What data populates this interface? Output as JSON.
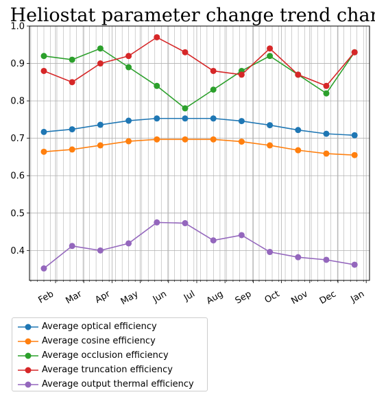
{
  "chart_data": {
    "type": "line",
    "title": "Heliostat parameter change trend chart",
    "xlabel": "",
    "ylabel": "",
    "categories": [
      "Feb",
      "Mar",
      "Apr",
      "May",
      "Jun",
      "Jul",
      "Aug",
      "Sep",
      "Oct",
      "Nov",
      "Dec",
      "Jan"
    ],
    "ylim": [
      0.32,
      1.0
    ],
    "yticks": [
      "0.4",
      "0.5",
      "0.6",
      "0.7",
      "0.8",
      "0.9",
      "1.0"
    ],
    "grid": true,
    "legend_position": "below",
    "series": [
      {
        "name": "Average optical efficiency",
        "color": "#1f77b4",
        "values": [
          0.717,
          0.724,
          0.736,
          0.747,
          0.753,
          0.753,
          0.753,
          0.746,
          0.735,
          0.722,
          0.712,
          0.708
        ]
      },
      {
        "name": "Average cosine efficiency",
        "color": "#ff7f0e",
        "values": [
          0.664,
          0.67,
          0.681,
          0.692,
          0.697,
          0.697,
          0.697,
          0.691,
          0.681,
          0.668,
          0.659,
          0.655
        ]
      },
      {
        "name": "Average occlusion efficiency",
        "color": "#2ca02c",
        "values": [
          0.92,
          0.91,
          0.94,
          0.89,
          0.84,
          0.78,
          0.83,
          0.88,
          0.92,
          0.87,
          0.82,
          0.93
        ]
      },
      {
        "name": "Average truncation efficiency",
        "color": "#d62728",
        "values": [
          0.88,
          0.85,
          0.9,
          0.92,
          0.97,
          0.93,
          0.88,
          0.87,
          0.94,
          0.87,
          0.84,
          0.93
        ]
      },
      {
        "name": "Average output thermal efficiency",
        "color": "#9467bd",
        "values": [
          0.352,
          0.412,
          0.4,
          0.419,
          0.475,
          0.473,
          0.427,
          0.441,
          0.396,
          0.382,
          0.375,
          0.362
        ]
      }
    ]
  }
}
